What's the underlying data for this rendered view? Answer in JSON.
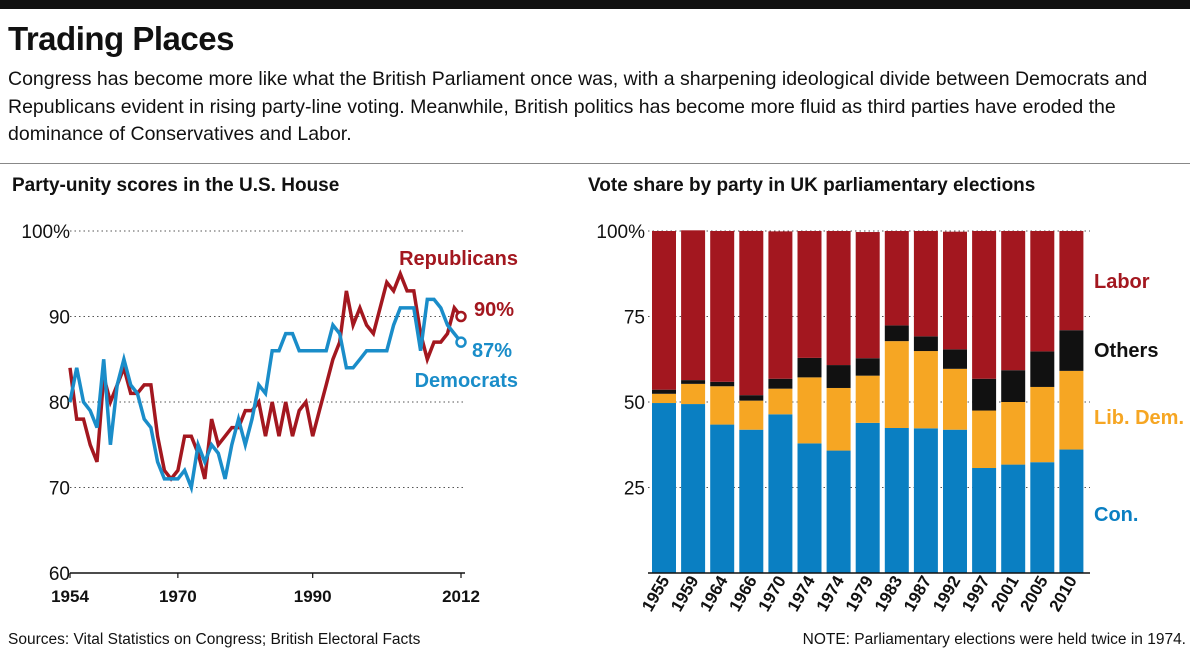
{
  "header": {
    "title": "Trading Places",
    "subtitle": "Congress has become more like what the British Parliament once was, with a sharpening ideological divide between Democrats and Republicans evident in rising party-line voting. Meanwhile, British politics has become more fluid as third parties have eroded the dominance of Conservatives and Labor."
  },
  "footer": {
    "sources": "Sources: Vital Statistics on Congress; British Electoral Facts",
    "note": "NOTE: Parliamentary elections were held twice in 1974."
  },
  "colors": {
    "republicans": "#a3171f",
    "democrats": "#1a8dc9",
    "labor": "#a3171f",
    "others": "#111111",
    "lib_dem": "#f6a623",
    "con": "#0a7fc2"
  },
  "chart_data": [
    {
      "type": "line",
      "title": "Party-unity scores in the U.S. House",
      "x_ticks": [
        "1954",
        "1970",
        "1990",
        "2012"
      ],
      "y_ticks": [
        "100%",
        "90",
        "80",
        "70",
        "60"
      ],
      "ylim": [
        60,
        100
      ],
      "xlim": [
        1954,
        2012
      ],
      "grid": "horizontal dotted",
      "x": [
        1954,
        1955,
        1956,
        1957,
        1958,
        1959,
        1960,
        1961,
        1962,
        1963,
        1964,
        1965,
        1966,
        1967,
        1968,
        1969,
        1970,
        1971,
        1972,
        1973,
        1974,
        1975,
        1976,
        1977,
        1978,
        1979,
        1980,
        1981,
        1982,
        1983,
        1984,
        1985,
        1986,
        1987,
        1988,
        1989,
        1990,
        1991,
        1992,
        1993,
        1994,
        1995,
        1996,
        1997,
        1998,
        1999,
        2000,
        2001,
        2002,
        2003,
        2004,
        2005,
        2006,
        2007,
        2008,
        2009,
        2010,
        2011,
        2012
      ],
      "series": [
        {
          "name": "Republicans",
          "end_label": "90%",
          "values": [
            84,
            78,
            78,
            75,
            73,
            83,
            80,
            82,
            84,
            81,
            81,
            82,
            82,
            76,
            72,
            71,
            72,
            76,
            76,
            74,
            71,
            78,
            75,
            76,
            77,
            77,
            79,
            79,
            80,
            76,
            80,
            76,
            80,
            76,
            79,
            80,
            76,
            79,
            82,
            85,
            87,
            93,
            89,
            91,
            89,
            88,
            91,
            94,
            93,
            95,
            93,
            93,
            88,
            85,
            87,
            87,
            88,
            91,
            90
          ]
        },
        {
          "name": "Democrats",
          "end_label": "87%",
          "values": [
            80,
            84,
            80,
            79,
            77,
            85,
            75,
            82,
            85,
            82,
            81,
            78,
            77,
            73,
            71,
            71,
            71,
            72,
            70,
            75,
            73,
            75,
            74,
            71,
            75,
            78,
            75,
            78,
            82,
            81,
            86,
            86,
            88,
            88,
            86,
            86,
            86,
            86,
            86,
            89,
            88,
            84,
            84,
            85,
            86,
            86,
            86,
            86,
            89,
            91,
            91,
            91,
            86,
            92,
            92,
            91,
            89,
            88,
            87
          ]
        }
      ]
    },
    {
      "type": "bar",
      "stacked": true,
      "title": "Vote share by party in UK parliamentary elections",
      "categories": [
        "1955",
        "1959",
        "1964",
        "1966",
        "1970",
        "1974",
        "1974",
        "1979",
        "1983",
        "1987",
        "1992",
        "1997",
        "2001",
        "2005",
        "2010"
      ],
      "y_ticks": [
        "100%",
        "75",
        "50",
        "25"
      ],
      "ylim": [
        0,
        100
      ],
      "series": [
        {
          "name": "Con.",
          "values": [
            49.7,
            49.4,
            43.4,
            41.9,
            46.4,
            37.9,
            35.8,
            43.9,
            42.4,
            42.3,
            41.9,
            30.7,
            31.7,
            32.4,
            36.1
          ]
        },
        {
          "name": "Lib. Dem.",
          "values": [
            2.7,
            5.9,
            11.2,
            8.5,
            7.5,
            19.3,
            18.3,
            13.8,
            25.4,
            22.6,
            17.8,
            16.8,
            18.3,
            22.0,
            23.0
          ]
        },
        {
          "name": "Others",
          "values": [
            1.2,
            1.1,
            1.3,
            1.6,
            2.9,
            5.7,
            6.7,
            5.1,
            4.6,
            4.3,
            5.7,
            9.3,
            9.3,
            10.4,
            11.9
          ]
        },
        {
          "name": "Labor",
          "values": [
            46.4,
            43.8,
            44.1,
            48.0,
            43.1,
            37.1,
            39.2,
            36.9,
            27.6,
            30.8,
            34.4,
            43.2,
            40.7,
            35.2,
            29.0
          ]
        }
      ]
    }
  ]
}
